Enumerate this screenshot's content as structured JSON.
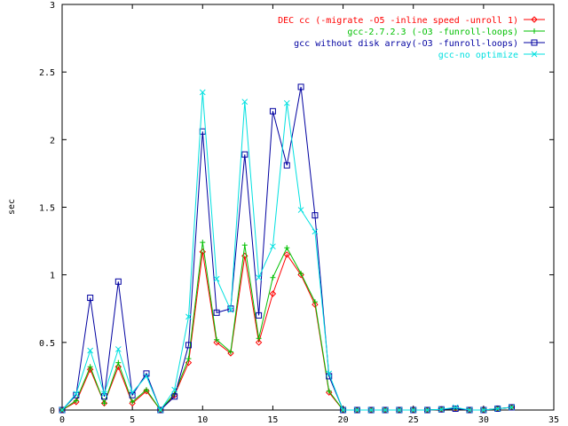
{
  "chart_data": {
    "type": "line",
    "title": "",
    "xlabel": "",
    "ylabel": "sec",
    "xlim": [
      0,
      35
    ],
    "ylim": [
      0,
      3
    ],
    "xticks": [
      0,
      5,
      10,
      15,
      20,
      25,
      30,
      35
    ],
    "yticks": [
      0,
      0.5,
      1,
      1.5,
      2,
      2.5,
      3
    ],
    "xtick_labels": [
      "0",
      "5",
      "10",
      "15",
      "20",
      "25",
      "30",
      "35"
    ],
    "ytick_labels": [
      "0",
      "0.5",
      "1",
      "1.5",
      "2",
      "2.5",
      "3"
    ],
    "grid": false,
    "legend_position": "top-right",
    "x": [
      0,
      1,
      2,
      3,
      4,
      5,
      6,
      7,
      8,
      9,
      10,
      11,
      12,
      13,
      14,
      15,
      16,
      17,
      18,
      19,
      20,
      21,
      22,
      23,
      24,
      25,
      26,
      27,
      28,
      29,
      30,
      31,
      32
    ],
    "series": [
      {
        "name": "DEC cc (-migrate -O5 -inline speed -unroll 1)",
        "color": "#ff0000",
        "marker": "diamond",
        "values": [
          0,
          0.06,
          0.3,
          0.05,
          0.32,
          0.05,
          0.14,
          0,
          0.11,
          0.35,
          1.17,
          0.5,
          0.42,
          1.14,
          0.5,
          0.86,
          1.15,
          1.0,
          0.78,
          0.13,
          0,
          0,
          0,
          0,
          0,
          0,
          0,
          0.005,
          0.01,
          0,
          0,
          0.01,
          0.02
        ]
      },
      {
        "name": "gcc-2.7.2.3 (-O3 -funroll-loops)",
        "color": "#00c000",
        "marker": "plus",
        "values": [
          0,
          0.07,
          0.32,
          0.05,
          0.35,
          0.06,
          0.15,
          0,
          0.12,
          0.38,
          1.24,
          0.52,
          0.43,
          1.22,
          0.53,
          0.98,
          1.2,
          1.01,
          0.8,
          0.14,
          0,
          0,
          0,
          0,
          0,
          0,
          0,
          0.005,
          0.01,
          0,
          0,
          0.01,
          0.02
        ]
      },
      {
        "name": "gcc without disk array(-O3 -funroll-loops)",
        "color": "#0000a0",
        "marker": "square",
        "values": [
          0,
          0.11,
          0.83,
          0.1,
          0.95,
          0.11,
          0.27,
          0,
          0.1,
          0.48,
          2.06,
          0.72,
          0.75,
          1.89,
          0.7,
          2.21,
          1.81,
          2.39,
          1.44,
          0.25,
          0,
          0,
          0,
          0,
          0,
          0,
          0,
          0.005,
          0.01,
          0,
          0,
          0.01,
          0.02
        ]
      },
      {
        "name": "gcc-no optimize",
        "color": "#00e0e0",
        "marker": "cross",
        "values": [
          0,
          0.12,
          0.44,
          0.12,
          0.45,
          0.13,
          0.25,
          0,
          0.15,
          0.69,
          2.35,
          0.97,
          0.74,
          2.28,
          0.98,
          1.21,
          2.27,
          1.48,
          1.32,
          0.27,
          0,
          0,
          0,
          0,
          0,
          0,
          0,
          0.005,
          0.02,
          0,
          0,
          0.01,
          0.02
        ]
      }
    ]
  }
}
